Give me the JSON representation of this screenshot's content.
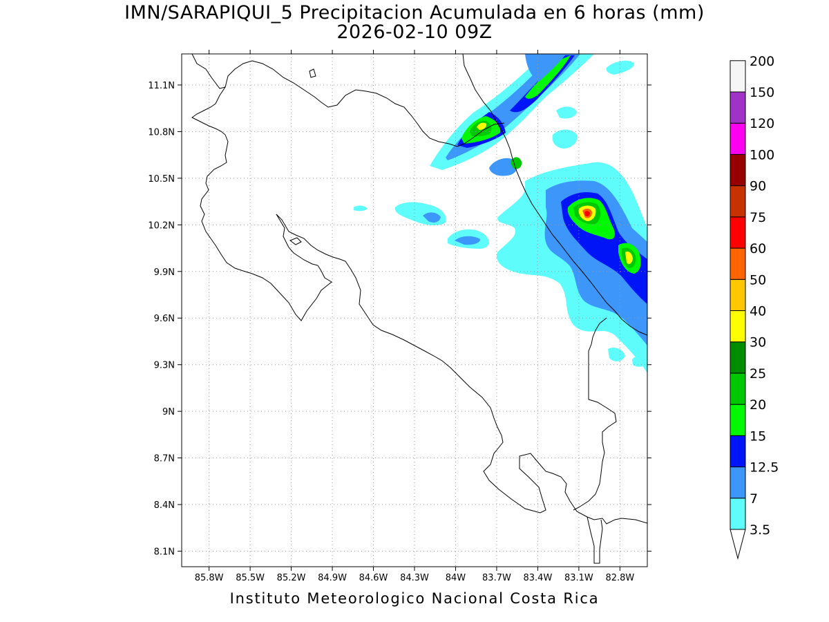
{
  "title": "IMN/SARAPIQUI_5 Precipitacion Acumulada en 6 horas (mm)",
  "subtitle": "2026-02-10 09Z",
  "footer": "Instituto Meteorologico Nacional Costa Rica",
  "map": {
    "lon_range": [
      -86.0,
      -82.6
    ],
    "lat_range": [
      8.0,
      11.3
    ],
    "lon_ticks": [
      {
        "value": -85.8,
        "label": "85.8W"
      },
      {
        "value": -85.5,
        "label": "85.5W"
      },
      {
        "value": -85.2,
        "label": "85.2W"
      },
      {
        "value": -84.9,
        "label": "84.9W"
      },
      {
        "value": -84.6,
        "label": "84.6W"
      },
      {
        "value": -84.3,
        "label": "84.3W"
      },
      {
        "value": -84.0,
        "label": "84W"
      },
      {
        "value": -83.7,
        "label": "83.7W"
      },
      {
        "value": -83.4,
        "label": "83.4W"
      },
      {
        "value": -83.1,
        "label": "83.1W"
      },
      {
        "value": -82.8,
        "label": "82.8W"
      }
    ],
    "lat_ticks": [
      {
        "value": 11.1,
        "label": "11.1N"
      },
      {
        "value": 10.8,
        "label": "10.8N"
      },
      {
        "value": 10.5,
        "label": "10.5N"
      },
      {
        "value": 10.2,
        "label": "10.2N"
      },
      {
        "value": 9.9,
        "label": "9.9N"
      },
      {
        "value": 9.6,
        "label": "9.6N"
      },
      {
        "value": 9.3,
        "label": "9.3N"
      },
      {
        "value": 9.0,
        "label": "9N"
      },
      {
        "value": 8.7,
        "label": "8.7N"
      },
      {
        "value": 8.4,
        "label": "8.4N"
      },
      {
        "value": 8.1,
        "label": "8.1N"
      }
    ],
    "grid": true
  },
  "colorbar": {
    "levels": [
      "3.5",
      "7",
      "12.5",
      "15",
      "20",
      "25",
      "30",
      "40",
      "50",
      "60",
      "75",
      "90",
      "100",
      "120",
      "150",
      "200"
    ],
    "colors": [
      "#5ffcfc",
      "#3d96fa",
      "#0014f8",
      "#00f800",
      "#00c800",
      "#008c00",
      "#ffff00",
      "#ffc800",
      "#ff6400",
      "#ff0000",
      "#c83200",
      "#960000",
      "#ff00f0",
      "#a032c8",
      "#f6f6f6",
      "#a0a0a0"
    ]
  }
}
